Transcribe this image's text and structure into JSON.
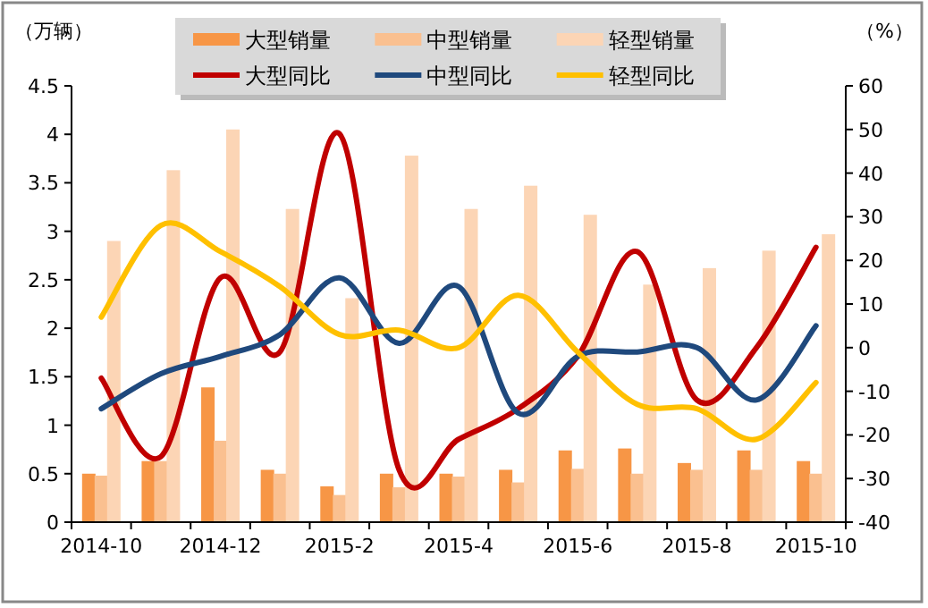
{
  "chart_data": {
    "type": "bar",
    "ylabel": "（万辆）",
    "y2label": "（%）",
    "categories": [
      "2014-10",
      null,
      "2014-12",
      null,
      "2015-2",
      null,
      "2015-4",
      null,
      "2015-6",
      null,
      "2015-8",
      null,
      "2015-10"
    ],
    "series": [
      {
        "name": "大型销量",
        "color": "#f79646",
        "values": [
          0.5,
          0.63,
          1.39,
          0.54,
          0.37,
          0.5,
          0.5,
          0.54,
          0.74,
          0.76,
          0.61,
          0.74,
          0.63
        ]
      },
      {
        "name": "中型销量",
        "color": "#fac090",
        "values": [
          0.48,
          0.63,
          0.84,
          0.5,
          0.28,
          0.36,
          0.47,
          0.41,
          0.55,
          0.5,
          0.54,
          0.54,
          0.5
        ]
      },
      {
        "name": "轻型销量",
        "color": "#fcd5b5",
        "values": [
          2.9,
          3.63,
          4.05,
          3.23,
          2.31,
          3.78,
          3.23,
          3.47,
          3.17,
          2.45,
          2.62,
          2.8,
          2.97
        ]
      },
      {
        "name": "大型同比",
        "type": "line",
        "axis": "y2",
        "color": "#c00000",
        "values": [
          -7,
          -25,
          16,
          -1,
          49,
          -28,
          -21,
          -14,
          -2,
          22,
          -12,
          0,
          23
        ]
      },
      {
        "name": "中型同比",
        "type": "line",
        "axis": "y2",
        "color": "#1f497d",
        "values": [
          -14,
          -6,
          -2,
          3,
          16,
          1,
          14,
          -15,
          -2,
          -1,
          0,
          -12,
          5
        ]
      },
      {
        "name": "轻型同比",
        "type": "line",
        "axis": "y2",
        "color": "#ffc000",
        "values": [
          7,
          28,
          22,
          14,
          3,
          4,
          0,
          12,
          -1,
          -13,
          -14,
          -21,
          -8
        ]
      }
    ],
    "ylim": [
      0,
      4.5
    ],
    "yticks": [
      0,
      0.5,
      1,
      1.5,
      2,
      2.5,
      3,
      3.5,
      4,
      4.5
    ],
    "y2lim": [
      -40,
      60
    ],
    "y2ticks": [
      -40,
      -30,
      -20,
      -10,
      0,
      10,
      20,
      30,
      40,
      50,
      60
    ],
    "legend": "top",
    "grid": false
  }
}
